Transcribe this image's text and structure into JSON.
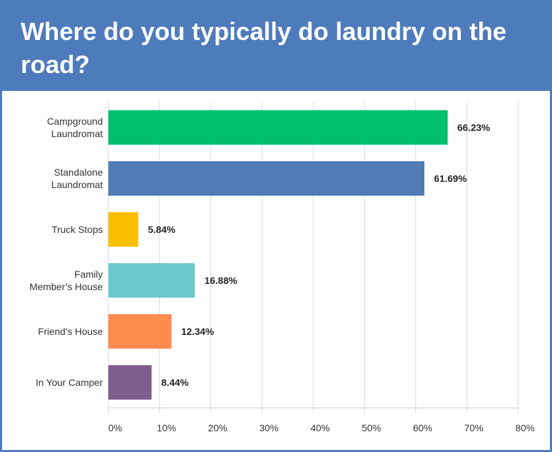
{
  "title": "Where do you typically do laundry on the road?",
  "chart_data": {
    "type": "bar",
    "orientation": "horizontal",
    "title": "Where do you typically do laundry on the road?",
    "categories": [
      [
        "Campground",
        "Laundromat"
      ],
      [
        "Standalone",
        "Laundromat"
      ],
      [
        "Truck Stops"
      ],
      [
        "Family",
        "Member’s House"
      ],
      [
        "Friend’s House"
      ],
      [
        "In Your Camper"
      ]
    ],
    "values": [
      66.23,
      61.69,
      5.84,
      16.88,
      12.34,
      8.44
    ],
    "value_labels": [
      "66.23%",
      "61.69%",
      "5.84%",
      "16.88%",
      "12.34%",
      "8.44%"
    ],
    "colors": [
      "#00bf6f",
      "#507cb6",
      "#f9be00",
      "#6bc8cd",
      "#ff8b4f",
      "#7f5e8e"
    ],
    "xlim": [
      0,
      80
    ],
    "ticks": [
      0,
      10,
      20,
      30,
      40,
      50,
      60,
      70,
      80
    ],
    "tick_labels": [
      "0%",
      "10%",
      "20%",
      "30%",
      "40%",
      "50%",
      "60%",
      "70%",
      "80%"
    ],
    "grid": true,
    "legend": "none"
  }
}
